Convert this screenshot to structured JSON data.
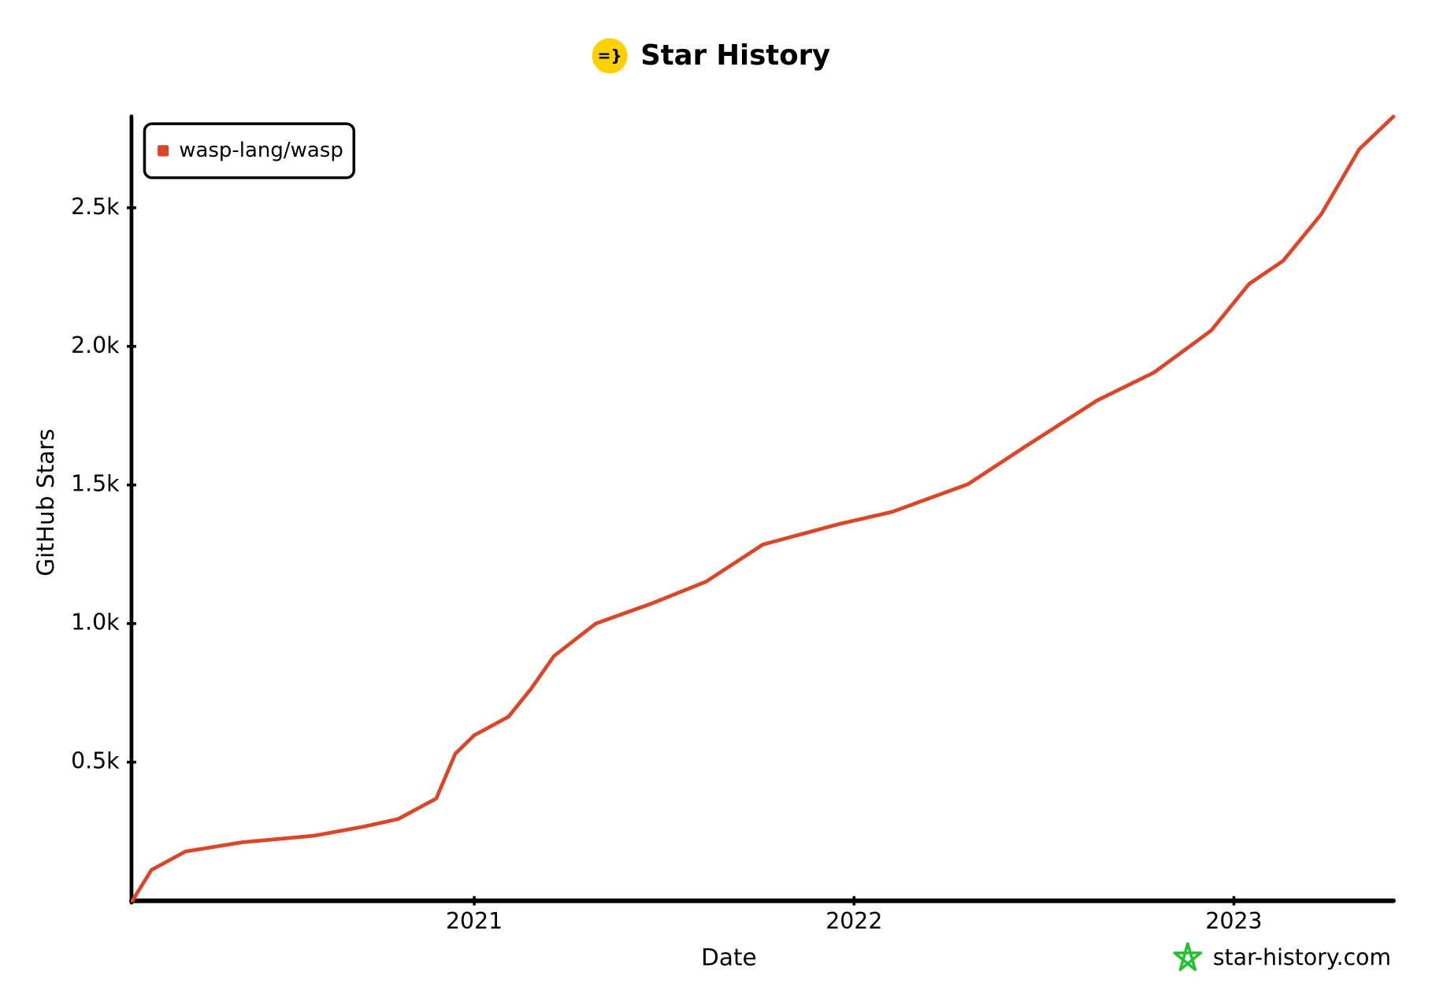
{
  "chart_data": {
    "type": "line",
    "title": "Star History",
    "logo": "=}",
    "xlabel": "Date",
    "ylabel": "GitHub Stars",
    "watermark": "star-history.com",
    "legend": "top-left",
    "x": [
      2020.1,
      2020.15,
      2020.24,
      2020.39,
      2020.58,
      2020.71,
      2020.8,
      2020.9,
      2020.95,
      2021.0,
      2021.09,
      2021.15,
      2021.21,
      2021.32,
      2021.47,
      2021.61,
      2021.76,
      2021.96,
      2022.1,
      2022.3,
      2022.45,
      2022.64,
      2022.79,
      2022.94,
      2023.04,
      2023.13,
      2023.23,
      2023.33,
      2023.42
    ],
    "series": [
      {
        "name": "wasp-lang/wasp",
        "color": "#dd4528",
        "values": [
          0,
          111,
          178,
          211,
          235,
          268,
          295,
          369,
          530,
          597,
          664,
          765,
          883,
          1000,
          1074,
          1151,
          1285,
          1359,
          1403,
          1503,
          1638,
          1805,
          1906,
          2057,
          2225,
          2309,
          2477,
          2711,
          2829
        ]
      }
    ],
    "xlim": [
      2020.1,
      2023.42
    ],
    "xticks": [
      2021,
      2022,
      2023
    ],
    "ylim": [
      0,
      2830
    ],
    "yticks": [
      {
        "value": 500,
        "label": "0.5k"
      },
      {
        "value": 1000,
        "label": "1.0k"
      },
      {
        "value": 1500,
        "label": "1.5k"
      },
      {
        "value": 2000,
        "label": "2.0k"
      },
      {
        "value": 2500,
        "label": "2.5k"
      }
    ]
  }
}
